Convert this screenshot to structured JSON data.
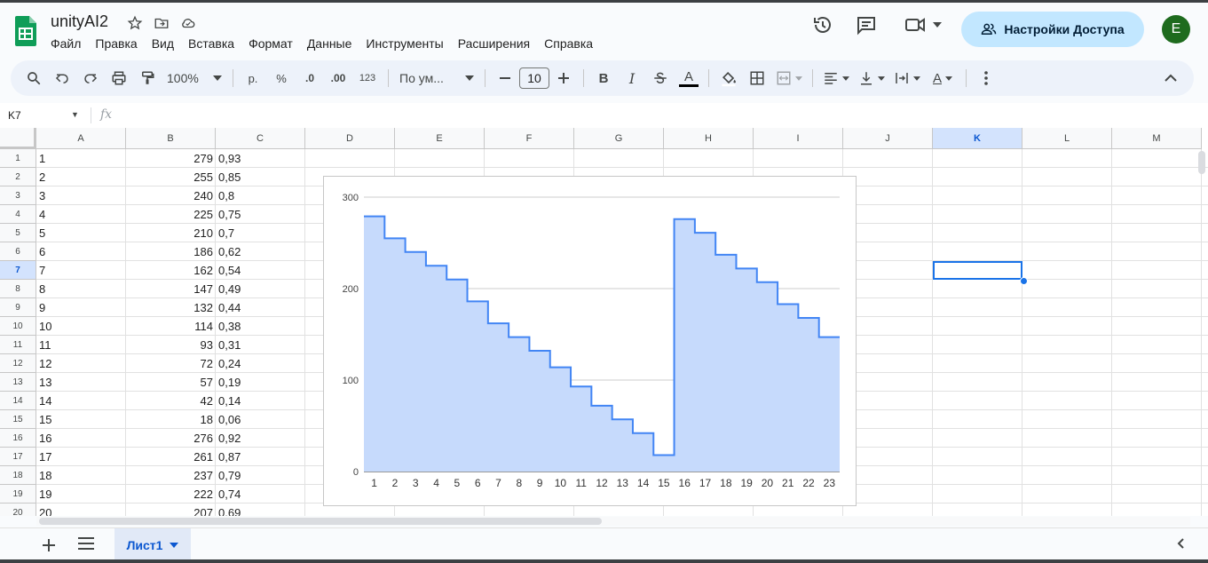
{
  "doc": {
    "title": "unityAI2"
  },
  "menu": [
    "Файл",
    "Правка",
    "Вид",
    "Вставка",
    "Формат",
    "Данные",
    "Инструменты",
    "Расширения",
    "Справка"
  ],
  "header": {
    "share_label": "Настройки Доступа",
    "avatar_letter": "E"
  },
  "toolbar": {
    "zoom": "100%",
    "currency": "р.",
    "percent": "%",
    "dec_decrease": ".0",
    "dec_increase": ".00",
    "more_formats": "123",
    "font": "По ум...",
    "font_size": "10",
    "bold": "B",
    "italic": "I",
    "text_color_letter": "A",
    "text_rotate_letter": "A"
  },
  "formula_bar": {
    "name_box": "K7",
    "fx": "fx",
    "value": ""
  },
  "grid": {
    "columns": [
      "A",
      "B",
      "C",
      "D",
      "E",
      "F",
      "G",
      "H",
      "I",
      "J",
      "K",
      "L",
      "M"
    ],
    "selected_column": "K",
    "selected_row": "7",
    "rows": [
      {
        "n": "1",
        "a": "1",
        "b": "279",
        "c": "0,93"
      },
      {
        "n": "2",
        "a": "2",
        "b": "255",
        "c": "0,85"
      },
      {
        "n": "3",
        "a": "3",
        "b": "240",
        "c": "0,8"
      },
      {
        "n": "4",
        "a": "4",
        "b": "225",
        "c": "0,75"
      },
      {
        "n": "5",
        "a": "5",
        "b": "210",
        "c": "0,7"
      },
      {
        "n": "6",
        "a": "6",
        "b": "186",
        "c": "0,62"
      },
      {
        "n": "7",
        "a": "7",
        "b": "162",
        "c": "0,54"
      },
      {
        "n": "8",
        "a": "8",
        "b": "147",
        "c": "0,49"
      },
      {
        "n": "9",
        "a": "9",
        "b": "132",
        "c": "0,44"
      },
      {
        "n": "10",
        "a": "10",
        "b": "114",
        "c": "0,38"
      },
      {
        "n": "11",
        "a": "11",
        "b": "93",
        "c": "0,31"
      },
      {
        "n": "12",
        "a": "12",
        "b": "72",
        "c": "0,24"
      },
      {
        "n": "13",
        "a": "13",
        "b": "57",
        "c": "0,19"
      },
      {
        "n": "14",
        "a": "14",
        "b": "42",
        "c": "0,14"
      },
      {
        "n": "15",
        "a": "15",
        "b": "18",
        "c": "0,06"
      },
      {
        "n": "16",
        "a": "16",
        "b": "276",
        "c": "0,92"
      },
      {
        "n": "17",
        "a": "17",
        "b": "261",
        "c": "0,87"
      },
      {
        "n": "18",
        "a": "18",
        "b": "237",
        "c": "0,79"
      },
      {
        "n": "19",
        "a": "19",
        "b": "222",
        "c": "0,74"
      },
      {
        "n": "20",
        "a": "20",
        "b": "207",
        "c": "0,69"
      }
    ]
  },
  "chart_data": {
    "type": "area",
    "step": true,
    "x": [
      1,
      2,
      3,
      4,
      5,
      6,
      7,
      8,
      9,
      10,
      11,
      12,
      13,
      14,
      15,
      16,
      17,
      18,
      19,
      20,
      21,
      22,
      23
    ],
    "values": [
      279,
      255,
      240,
      225,
      210,
      186,
      162,
      147,
      132,
      114,
      93,
      72,
      57,
      42,
      18,
      276,
      261,
      237,
      222,
      207,
      183,
      168,
      147
    ],
    "ylim": [
      0,
      300
    ],
    "yticks": [
      "0",
      "100",
      "200",
      "300"
    ],
    "grid": true,
    "title": "",
    "xlabel": "",
    "ylabel": "",
    "line_color": "#4285f4",
    "fill_color": "#c6dafc"
  },
  "sheets": {
    "active": "Лист1"
  },
  "colors": {
    "accent": "#0b57d0",
    "selection": "#1a73e8",
    "share_bg": "#c2e7ff"
  }
}
